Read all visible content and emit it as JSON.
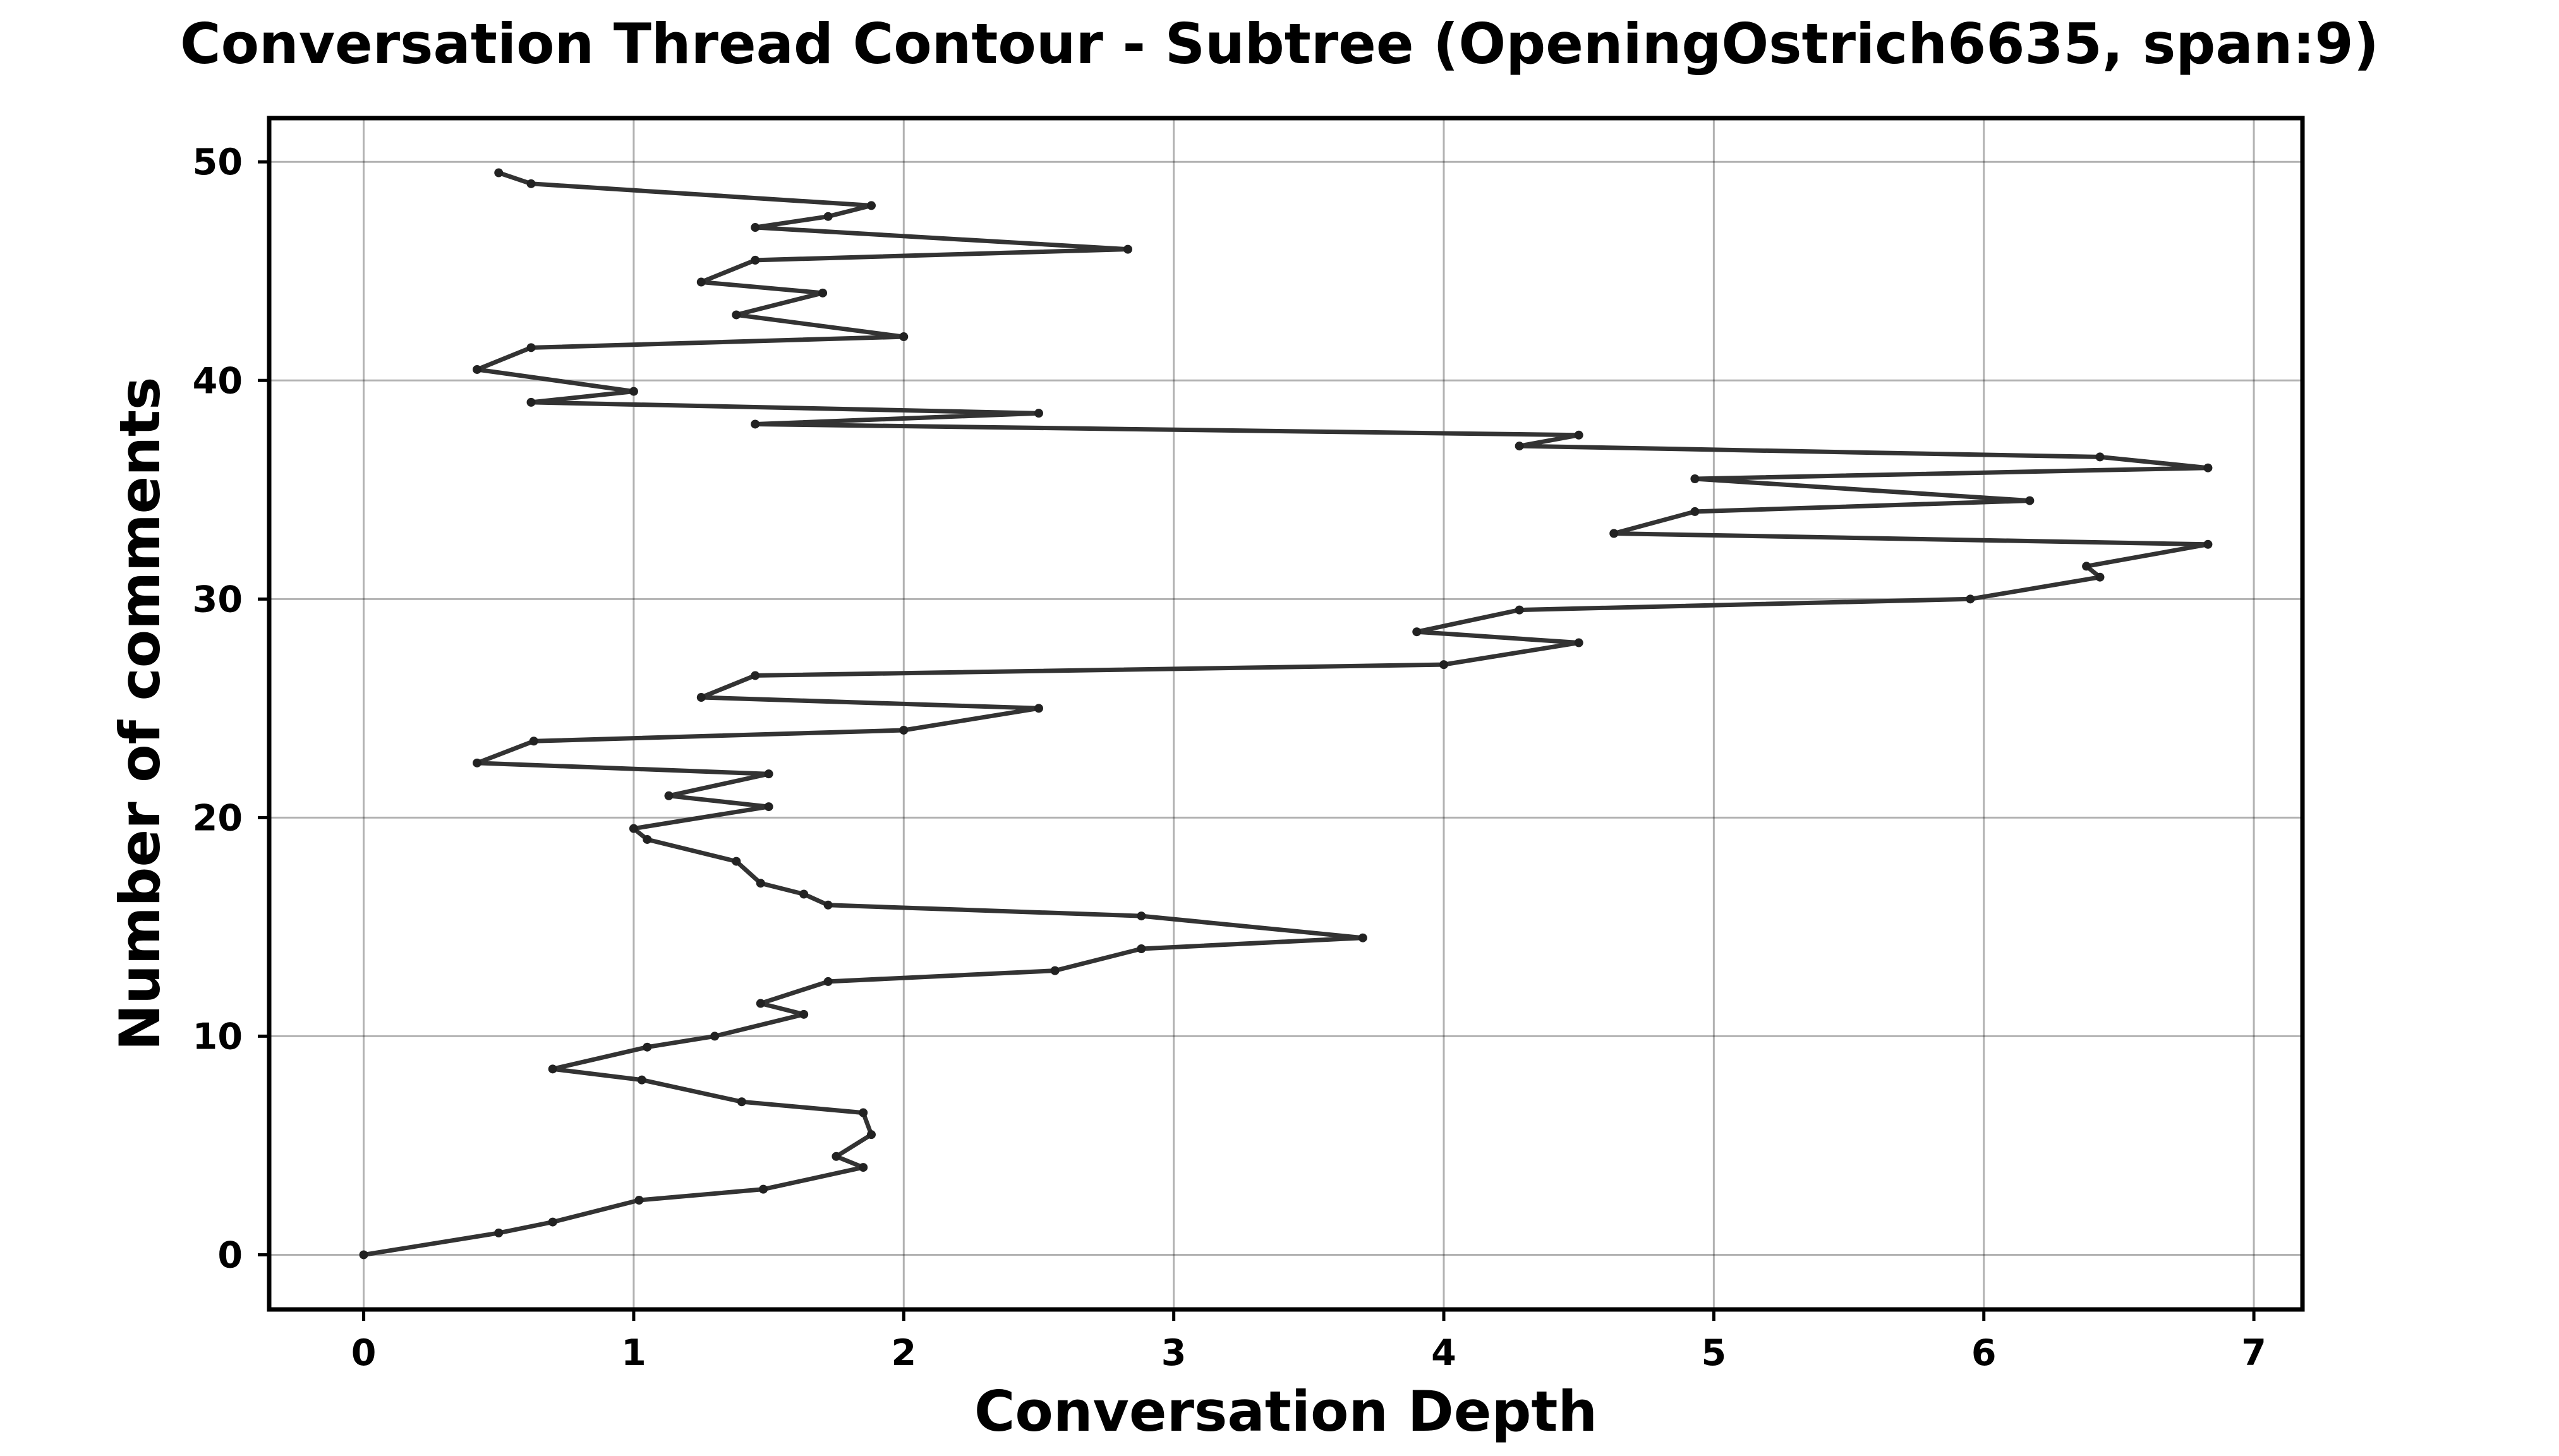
{
  "chart_data": {
    "type": "line",
    "title": "Conversation Thread Contour  - Subtree (OpeningOstrich6635, span:9)",
    "xlabel": "Conversation Depth",
    "ylabel": "Number of comments",
    "xlim": [
      -0.35,
      7.18
    ],
    "ylim": [
      -2.5,
      52
    ],
    "x_ticks": [
      0,
      1,
      2,
      3,
      4,
      5,
      6,
      7
    ],
    "y_ticks": [
      0,
      10,
      20,
      30,
      40,
      50
    ],
    "grid": true,
    "legend": "none",
    "colors": {
      "line": "#333333",
      "marker": "#222222"
    },
    "series": [
      {
        "x": [
          0,
          0.5,
          0.7,
          1.02,
          1.48,
          1.85,
          1.75,
          1.88,
          1.85,
          1.4,
          1.03,
          0.7,
          1.05,
          1.3,
          1.63,
          1.47,
          1.72,
          2.56,
          2.88,
          3.7,
          2.88,
          1.72,
          1.63,
          1.47,
          1.38,
          1.05,
          1.0,
          1.5,
          1.13,
          1.5,
          0.42,
          0.63,
          2.0,
          2.5,
          1.25,
          1.45,
          4.0,
          4.5,
          3.9,
          4.28,
          5.95,
          6.43,
          6.38,
          6.83,
          4.63,
          4.93,
          6.17,
          4.93,
          6.83,
          6.43,
          4.28,
          4.5,
          1.45,
          2.5,
          0.62,
          1.0,
          0.42,
          0.62,
          2.0,
          1.38,
          1.7,
          1.25,
          1.45,
          2.83,
          1.45,
          1.72,
          1.88,
          0.62,
          0.5
        ],
        "y": [
          0,
          1,
          1.5,
          2.5,
          3,
          4,
          4.5,
          5.5,
          6.5,
          7,
          8,
          8.5,
          9.5,
          10,
          11,
          11.5,
          12.5,
          13,
          14,
          14.5,
          15.5,
          16,
          16.5,
          17,
          18,
          19,
          19.5,
          20.5,
          21,
          22,
          22.5,
          23.5,
          24,
          25,
          25.5,
          26.5,
          27,
          28,
          28.5,
          29.5,
          30,
          31,
          31.5,
          32.5,
          33,
          34,
          34.5,
          35.5,
          36,
          36.5,
          37,
          37.5,
          38,
          38.5,
          39,
          39.5,
          40.5,
          41.5,
          42,
          43,
          44,
          44.5,
          45.5,
          46,
          47,
          47.5,
          48,
          49,
          49.5
        ]
      }
    ]
  }
}
